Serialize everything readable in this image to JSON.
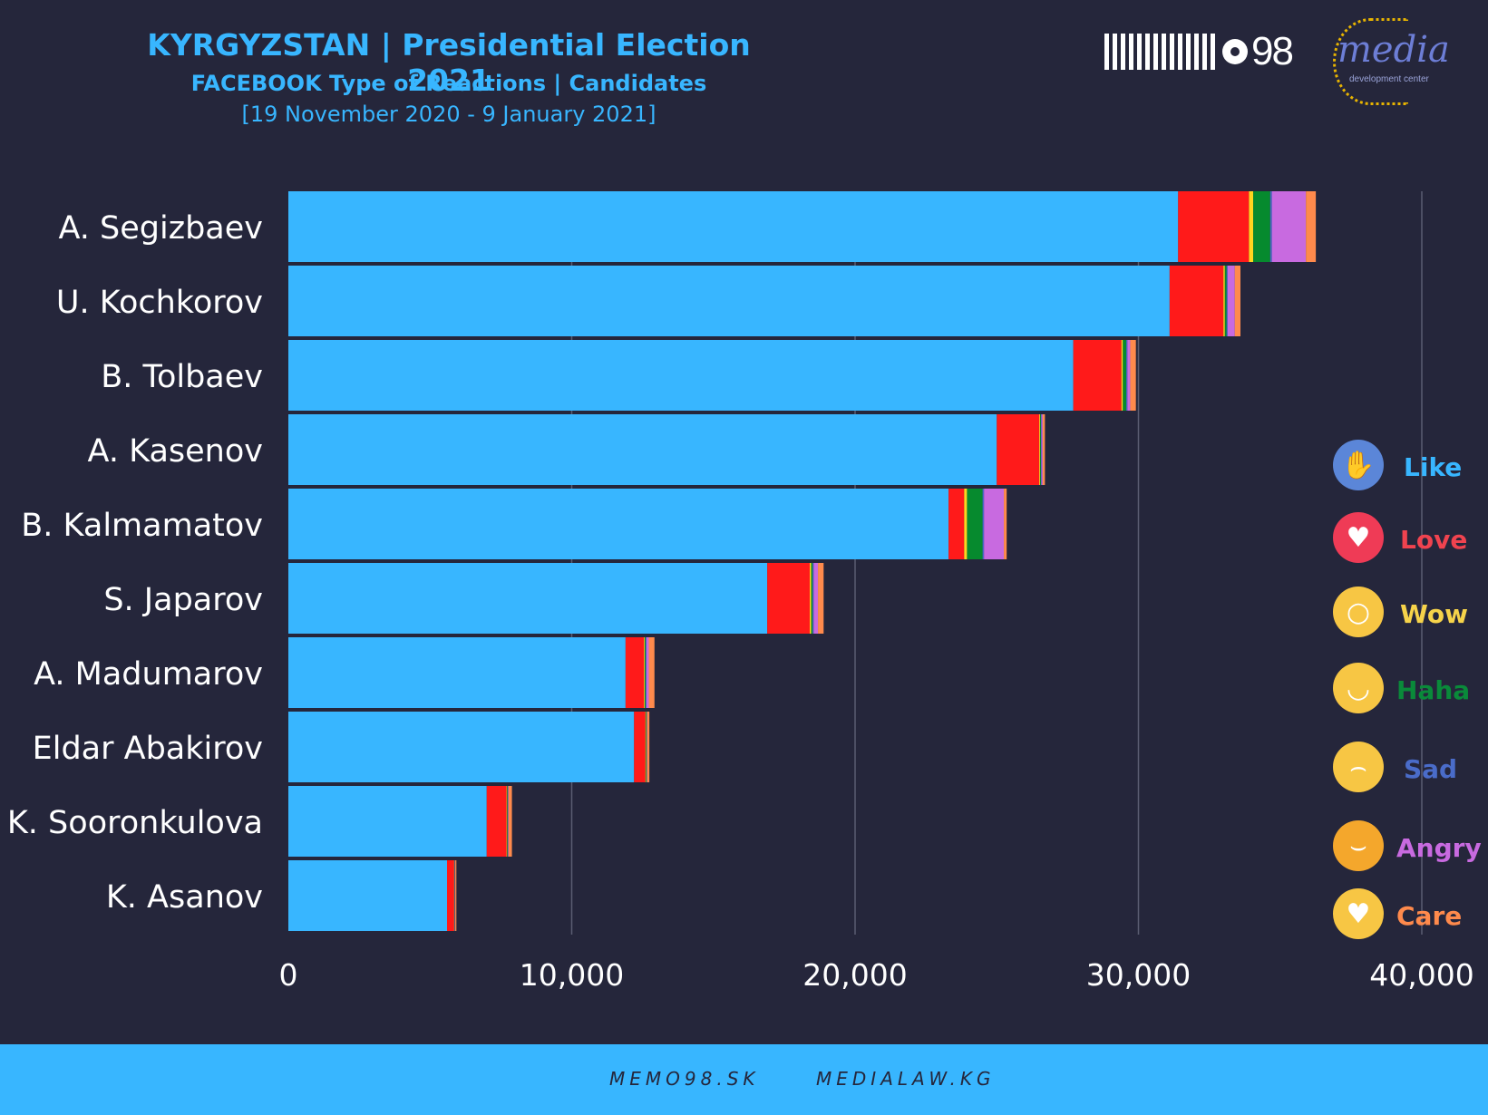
{
  "header": {
    "title": "KYRGYZSTAN | Presidential Election 2021",
    "subtitle": "FACEBOOK Type of Reactions | Candidates",
    "daterange": "[19 November 2020 - 9 January 2021]"
  },
  "logos": {
    "memo_num": "98",
    "media_word": "media",
    "media_sub": "development center"
  },
  "chart_data": {
    "type": "bar",
    "orientation": "horizontal",
    "stacked": true,
    "categories": [
      "A. Segizbaev",
      "U. Kochkorov",
      "B. Tolbaev",
      "A. Kasenov",
      "B. Kalmamatov",
      "S. Japarov",
      "A. Madumarov",
      "Eldar Abakirov",
      "K. Sooronkulova",
      "K. Asanov"
    ],
    "series": [
      {
        "name": "Like",
        "color": "#38b6ff",
        "values": [
          31400,
          31100,
          27700,
          25000,
          23300,
          16900,
          11900,
          12200,
          7000,
          5600
        ]
      },
      {
        "name": "Love",
        "color": "#ff1a1a",
        "values": [
          2500,
          1900,
          1700,
          1500,
          550,
          1500,
          650,
          400,
          700,
          250
        ]
      },
      {
        "name": "Wow",
        "color": "#ffd51f",
        "values": [
          150,
          50,
          50,
          30,
          100,
          50,
          30,
          20,
          20,
          10
        ]
      },
      {
        "name": "Haha",
        "color": "#068a2e",
        "values": [
          600,
          60,
          120,
          30,
          550,
          50,
          30,
          20,
          20,
          10
        ]
      },
      {
        "name": "Sad",
        "color": "#4a69c6",
        "values": [
          60,
          40,
          40,
          20,
          50,
          40,
          30,
          10,
          10,
          10
        ]
      },
      {
        "name": "Angry",
        "color": "#c86ae0",
        "values": [
          1200,
          250,
          100,
          40,
          700,
          150,
          80,
          10,
          20,
          10
        ]
      },
      {
        "name": "Care",
        "color": "#ff8a4c",
        "values": [
          350,
          200,
          200,
          80,
          100,
          200,
          200,
          80,
          120,
          40
        ]
      }
    ],
    "xlim": [
      0,
      40000
    ],
    "xticks": [
      "0",
      "10,000",
      "20,000",
      "30,000",
      "40,000"
    ],
    "xtick_values": [
      0,
      10000,
      20000,
      30000,
      40000
    ],
    "grid": true,
    "legend_position": "right"
  },
  "legend": [
    {
      "label": "Like",
      "color": "#38b6ff",
      "icon": "like-icon"
    },
    {
      "label": "Love",
      "color": "#f0434f",
      "icon": "love-icon"
    },
    {
      "label": "Wow",
      "color": "#f6d34a",
      "icon": "wow-icon"
    },
    {
      "label": "Haha",
      "color": "#0a8a3a",
      "icon": "haha-icon"
    },
    {
      "label": "Sad",
      "color": "#4a6cc9",
      "icon": "sad-icon"
    },
    {
      "label": "Angry",
      "color": "#c86ae0",
      "icon": "angry-icon"
    },
    {
      "label": "Care",
      "color": "#ff8a4c",
      "icon": "care-icon"
    }
  ],
  "footer": {
    "left": "MEMO98.SK",
    "right": "MEDIALAW.KG"
  }
}
